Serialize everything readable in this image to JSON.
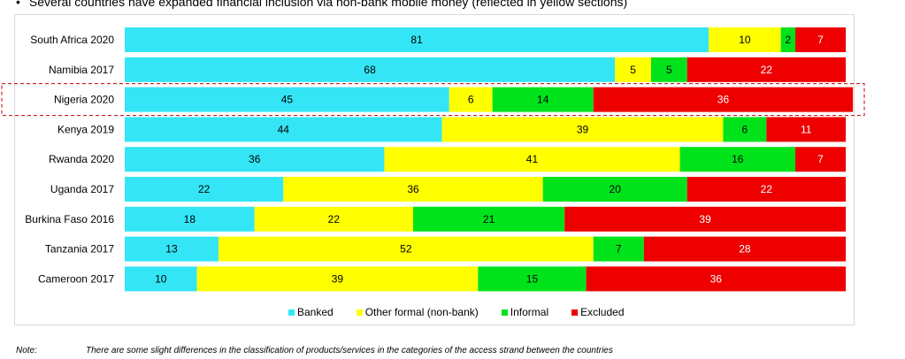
{
  "headline": {
    "bullet": "•",
    "text": "Several countries have expanded financial inclusion via non-bank mobile money (reflected in yellow sections)"
  },
  "note": {
    "label": "Note:",
    "text": "There are some slight differences in the classification of products/services in the categories of the access strand between the countries"
  },
  "chart_data": {
    "type": "bar",
    "orientation": "horizontal",
    "stacked": true,
    "xlim": [
      0,
      100
    ],
    "grid": false,
    "legend_position": "bottom",
    "highlighted_category": "Nigeria 2020",
    "categories": [
      "South Africa 2020",
      "Namibia 2017",
      "Nigeria 2020",
      "Kenya 2019",
      "Rwanda 2020",
      "Uganda 2017",
      "Burkina Faso 2016",
      "Tanzania 2017",
      "Cameroon 2017"
    ],
    "series": [
      {
        "name": "Banked",
        "color": "#33e5f5",
        "values": [
          81,
          68,
          45,
          44,
          36,
          22,
          18,
          13,
          10
        ]
      },
      {
        "name": "Other formal (non-bank)",
        "color": "#ffff00",
        "values": [
          10,
          5,
          6,
          39,
          41,
          36,
          22,
          52,
          39
        ]
      },
      {
        "name": "Informal",
        "color": "#00e31a",
        "values": [
          2,
          5,
          14,
          6,
          16,
          20,
          21,
          7,
          15
        ]
      },
      {
        "name": "Excluded",
        "color": "#ee0000",
        "values": [
          7,
          22,
          36,
          11,
          7,
          22,
          39,
          28,
          36
        ]
      }
    ]
  }
}
